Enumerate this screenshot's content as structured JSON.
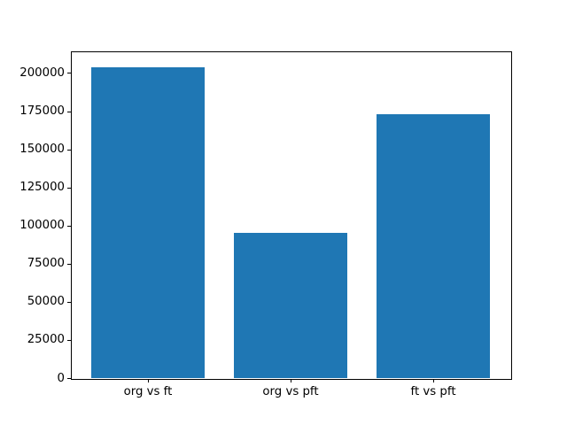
{
  "chart_data": {
    "type": "bar",
    "title": "",
    "xlabel": "",
    "ylabel": "",
    "categories": [
      "org vs ft",
      "org vs pft",
      "ft vs pft"
    ],
    "values": [
      204000,
      95000,
      173000
    ],
    "yticks": [
      0,
      25000,
      50000,
      75000,
      100000,
      125000,
      150000,
      175000,
      200000
    ],
    "ytick_labels": [
      "0",
      "25000",
      "50000",
      "75000",
      "100000",
      "125000",
      "150000",
      "175000",
      "200000"
    ],
    "ylim": [
      0,
      214200
    ],
    "xlim": [
      -0.54,
      2.54
    ],
    "bar_width": 0.8,
    "bar_color": "#1f77b4",
    "spine_color": "#000000",
    "background_color": "#ffffff",
    "grid": false,
    "legend": null
  }
}
